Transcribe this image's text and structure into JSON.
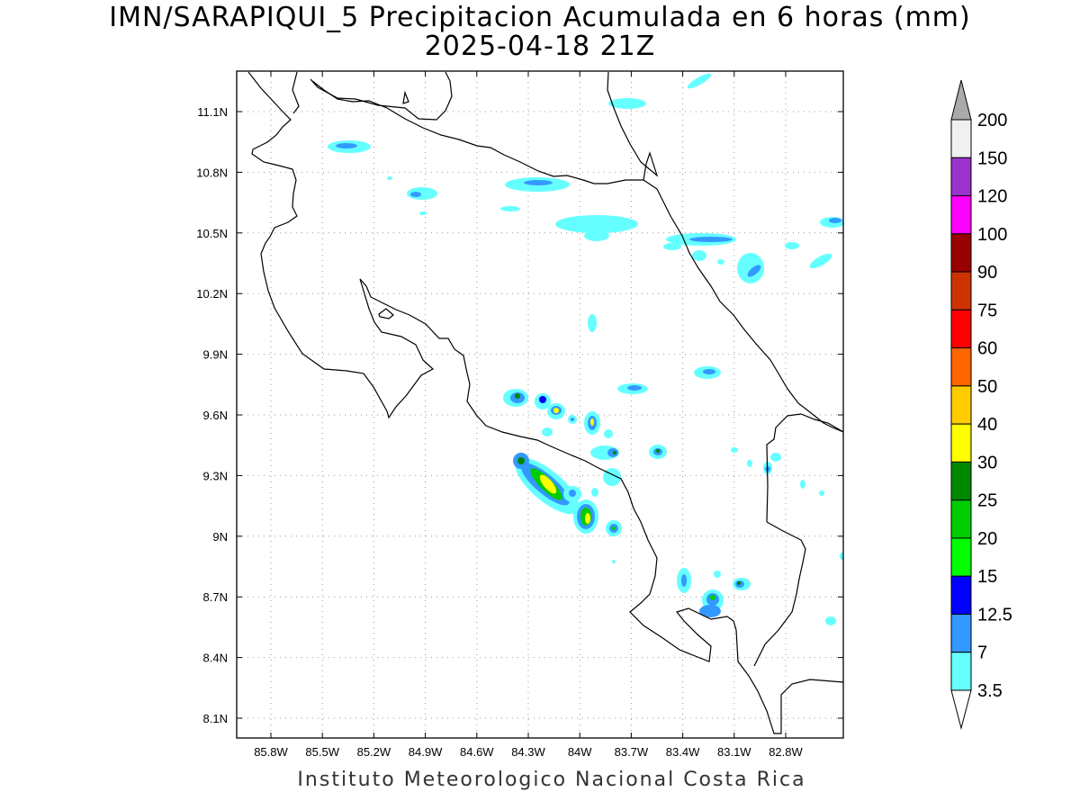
{
  "title": {
    "line1": "IMN/SARAPIQUI_5 Precipitacion Acumulada en 6 horas (mm)",
    "line2": "2025-04-18 21Z"
  },
  "footer": "Instituto Meteorologico Nacional Costa Rica",
  "axes": {
    "x_ticks": [
      "85.8W",
      "85.5W",
      "85.2W",
      "84.9W",
      "84.6W",
      "84.3W",
      "84W",
      "83.7W",
      "83.4W",
      "83.1W",
      "82.8W"
    ],
    "y_ticks": [
      "11.1N",
      "10.8N",
      "10.5N",
      "10.2N",
      "9.9N",
      "9.6N",
      "9.3N",
      "9N",
      "8.7N",
      "8.4N",
      "8.1N"
    ],
    "lon_range": [
      -86.0,
      -82.4
    ],
    "lat_range": [
      8.0,
      11.3
    ],
    "grid": true
  },
  "colorbar": {
    "labels": [
      "200",
      "150",
      "120",
      "100",
      "90",
      "75",
      "60",
      "50",
      "40",
      "30",
      "25",
      "20",
      "15",
      "12.5",
      "7",
      "3.5"
    ],
    "colors": [
      "#f0f0f0",
      "#9933cc",
      "#ff00ff",
      "#990000",
      "#cc3300",
      "#ff0000",
      "#ff6600",
      "#ffcc00",
      "#ffff00",
      "#008800",
      "#00cc00",
      "#00ff00",
      "#0000ff",
      "#3399ff",
      "#66ffff"
    ],
    "over_color": "#aaaaaa"
  }
}
